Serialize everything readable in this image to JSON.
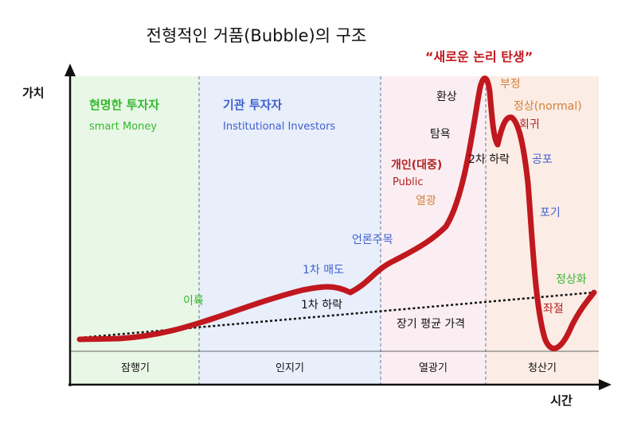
{
  "title": "전형적인 거품(Bubble)의 구조",
  "axes": {
    "y_label": "가치",
    "x_label": "시간"
  },
  "phases": [
    {
      "name": "잠행기",
      "bg": "#e9f7e6"
    },
    {
      "name": "인지기",
      "bg": "#e8eefa"
    },
    {
      "name": "열광기",
      "bg": "#fbeef3"
    },
    {
      "name": "청산기",
      "bg": "#fbece5"
    }
  ],
  "investors": {
    "smart": {
      "kr": "현명한 투자자",
      "en": "smart Money",
      "color": "#33b82e"
    },
    "institutional": {
      "kr": "기관 투자자",
      "en": "Institutional Investors",
      "color": "#3f5fcf"
    },
    "public": {
      "kr": "개인(대중)",
      "en": "Public",
      "color": "#b22222"
    }
  },
  "curve_color": "#c0181e",
  "trend_label": "장기 평균 가격",
  "annotations": {
    "profit": "이륙",
    "first_sell": "1차 매도",
    "first_drop": "1차 하락",
    "media": "언론주목",
    "enthusiasm": "열광",
    "greed": "탐욕",
    "illusion": "환상",
    "new_paradigm": "“새로운 논리 탄생”",
    "denial": "부정",
    "normal": "정상(normal)",
    "return": "회귀",
    "second_drop": "2차 하락",
    "fear": "공포",
    "giveup": "포기",
    "despair": "좌절",
    "normalize": "정상화"
  }
}
